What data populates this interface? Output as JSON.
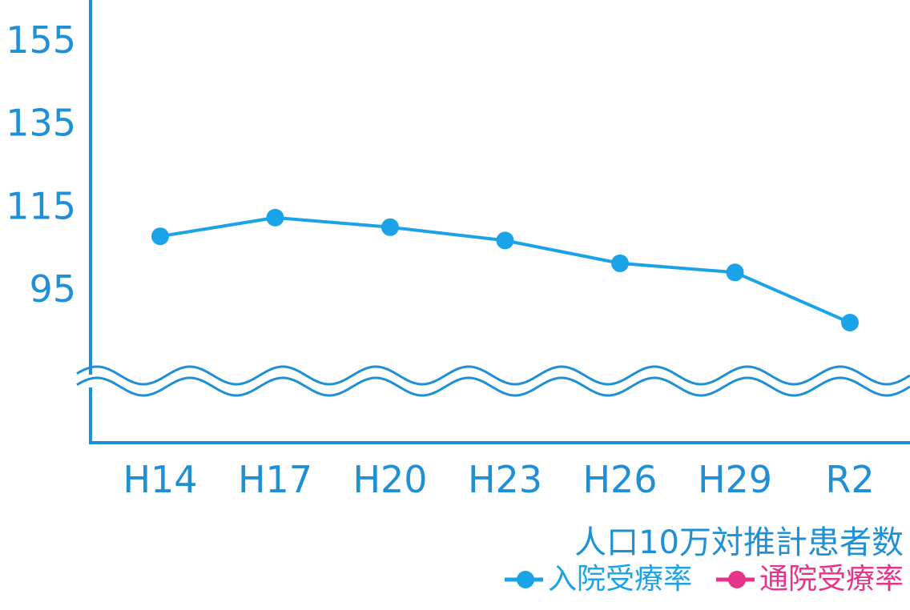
{
  "chart_data": {
    "type": "line",
    "categories": [
      "H14",
      "H17",
      "H20",
      "H23",
      "H26",
      "H29",
      "R2"
    ],
    "series": [
      {
        "name": "入院受療率",
        "color": "#1aa3e8",
        "values": [
          107.5,
          112,
          109.7,
          106.5,
          101,
          98.8,
          86.7
        ]
      }
    ],
    "y_ticks": [
      95,
      115,
      135,
      155
    ],
    "ylim": [
      75,
      163
    ],
    "axis_break": true,
    "xlabel": "人口10万対推計患者数",
    "legend": [
      {
        "label": "入院受療率",
        "color": "#1aa3e8"
      },
      {
        "label": "通院受療率",
        "color": "#e8338a"
      }
    ],
    "legend_position": "bottom-right",
    "grid": false
  }
}
